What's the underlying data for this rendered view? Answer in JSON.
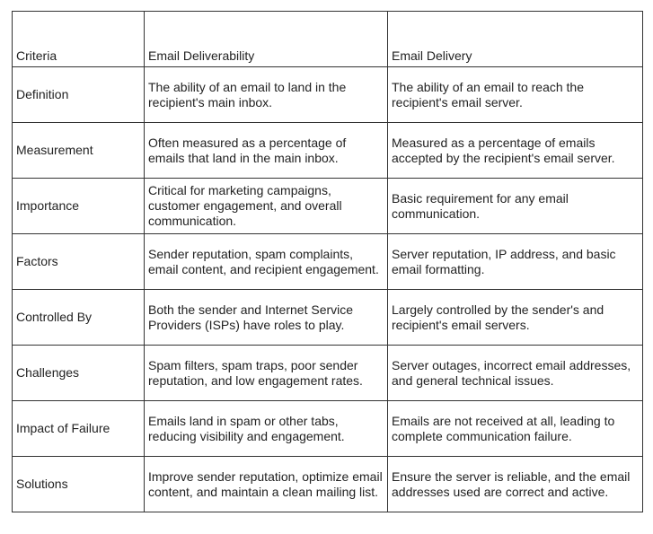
{
  "table": {
    "header": [
      "Criteria",
      "Email Deliverability",
      "Email Delivery"
    ],
    "rows": [
      [
        "Definition",
        "The ability of an email to land in the recipient's main inbox.",
        "The ability of an email to reach the recipient's email server."
      ],
      [
        "Measurement",
        "Often measured as a percentage of emails that land in the main inbox.",
        "Measured as a percentage of emails accepted by the recipient's email server."
      ],
      [
        "Importance",
        "Critical for marketing campaigns, customer engagement, and overall communication.",
        "Basic requirement for any email communication."
      ],
      [
        "Factors",
        "Sender reputation, spam complaints, email content, and recipient engagement.",
        "Server reputation, IP address, and basic email formatting."
      ],
      [
        "Controlled By",
        "Both the sender and Internet Service Providers (ISPs) have roles to play.",
        "Largely controlled by the sender's and recipient's email servers."
      ],
      [
        "Challenges",
        "Spam filters, spam traps, poor sender reputation, and low engagement rates.",
        "Server outages, incorrect email addresses, and general technical issues."
      ],
      [
        "Impact of Failure",
        "Emails land in spam or other tabs, reducing visibility and engagement.",
        "Emails are not received at all, leading to complete communication failure."
      ],
      [
        "Solutions",
        "Improve sender reputation, optimize email content, and maintain a clean mailing list.",
        "Ensure the server is reliable, and the email addresses used are correct and active."
      ]
    ]
  }
}
